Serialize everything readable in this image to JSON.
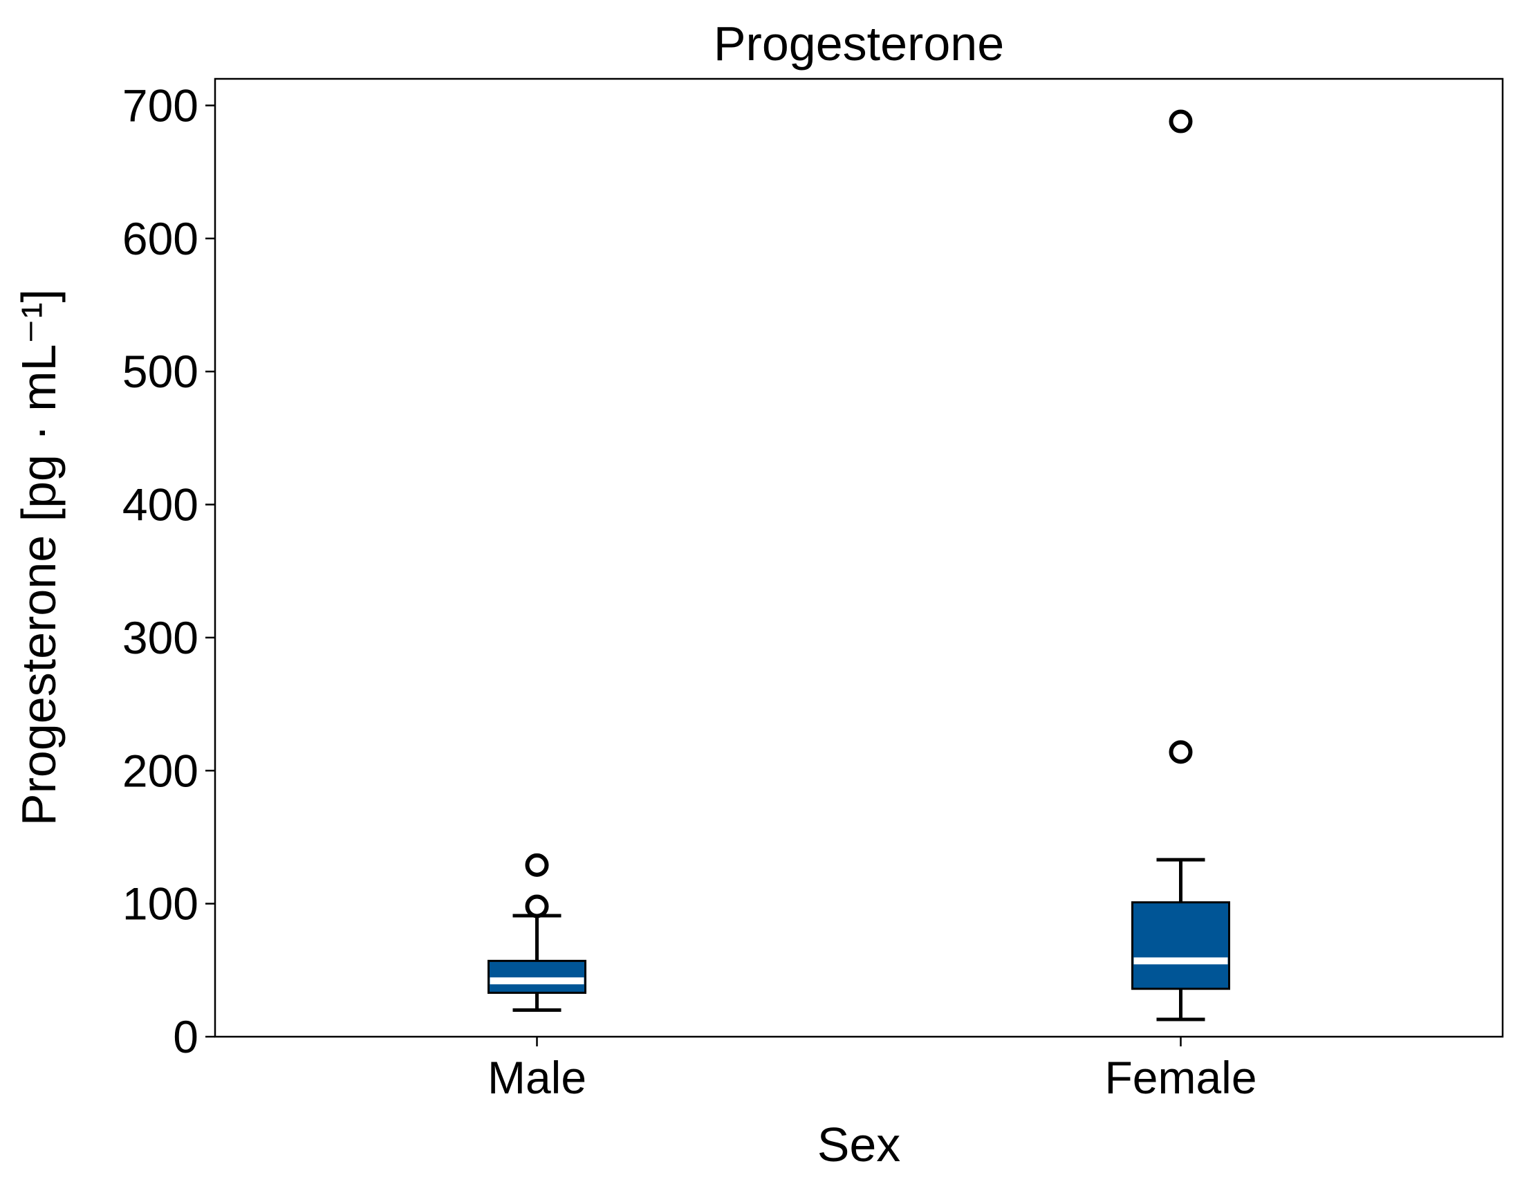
{
  "chart_data": {
    "type": "box",
    "title": "Progesterone",
    "xlabel": "Sex",
    "ylabel": "Progesterone [pg · mL⁻¹]",
    "ylim": [
      0,
      720
    ],
    "yticks": [
      0,
      100,
      200,
      300,
      400,
      500,
      600,
      700
    ],
    "grid": false,
    "legend": "none",
    "categories": [
      "Male",
      "Female"
    ],
    "boxes": [
      {
        "category": "Male",
        "whisker_low": 20,
        "q1": 33,
        "median": 42,
        "q3": 57,
        "whisker_high": 91,
        "outliers": [
          98,
          129
        ]
      },
      {
        "category": "Female",
        "whisker_low": 13,
        "q1": 36,
        "median": 57,
        "q3": 101,
        "whisker_high": 133,
        "outliers": [
          214,
          688
        ]
      }
    ],
    "colors": {
      "box_fill": "#005596",
      "median": "#ffffff",
      "edge": "#000000"
    }
  }
}
